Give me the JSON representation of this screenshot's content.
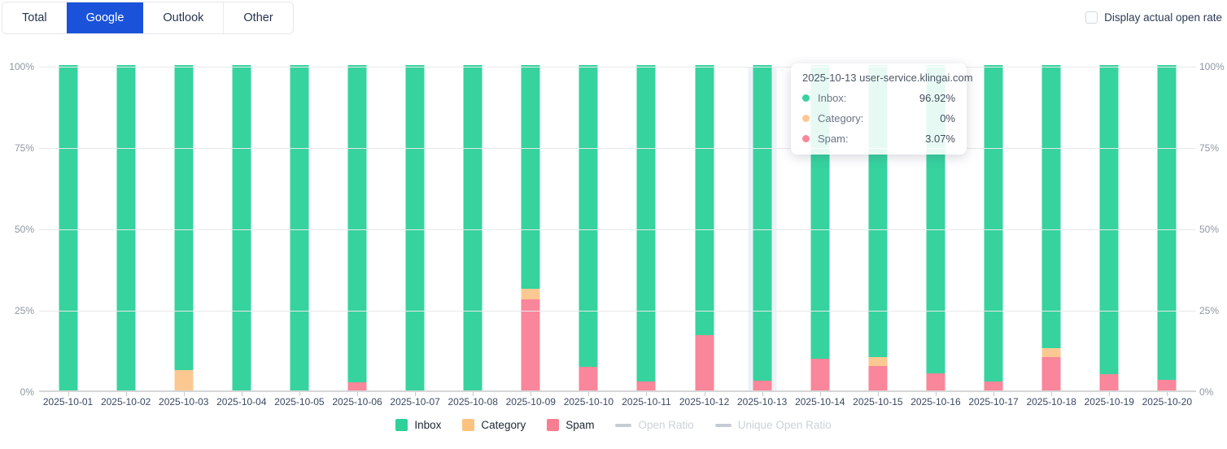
{
  "tabs": [
    {
      "label": "Total",
      "active": false
    },
    {
      "label": "Google",
      "active": true
    },
    {
      "label": "Outlook",
      "active": false
    },
    {
      "label": "Other",
      "active": false
    }
  ],
  "controls": {
    "display_actual_open_rate_label": "Display actual open rate",
    "checked": false
  },
  "chart_data": {
    "type": "bar",
    "stacked": true,
    "unit": "%",
    "title": "",
    "xlabel": "",
    "ylabel": "",
    "ylim": [
      0,
      100
    ],
    "yticks": [
      "0%",
      "25%",
      "50%",
      "75%",
      "100%"
    ],
    "grid": true,
    "categories": [
      "2025-10-01",
      "2025-10-02",
      "2025-10-03",
      "2025-10-04",
      "2025-10-05",
      "2025-10-06",
      "2025-10-07",
      "2025-10-08",
      "2025-10-09",
      "2025-10-10",
      "2025-10-11",
      "2025-10-12",
      "2025-10-13",
      "2025-10-14",
      "2025-10-15",
      "2025-10-16",
      "2025-10-17",
      "2025-10-18",
      "2025-10-19",
      "2025-10-20"
    ],
    "series": [
      {
        "name": "Inbox",
        "color": "#36d39f",
        "values": [
          100,
          100,
          93.8,
          100,
          100,
          97.4,
          100,
          100,
          68.7,
          92.8,
          97.2,
          82.9,
          96.92,
          90.3,
          89.7,
          94.7,
          97.3,
          86.9,
          95.0,
          96.7
        ]
      },
      {
        "name": "Category",
        "color": "#fcc892",
        "values": [
          0,
          0,
          6.2,
          0,
          0,
          0,
          0,
          0,
          3.3,
          0,
          0,
          0,
          0,
          0,
          2.7,
          0,
          0,
          2.8,
          0,
          0
        ]
      },
      {
        "name": "Spam",
        "color": "#f9869a",
        "values": [
          0,
          0,
          0,
          0,
          0,
          2.6,
          0,
          0,
          28.0,
          7.2,
          2.8,
          17.1,
          3.07,
          9.7,
          7.6,
          5.3,
          2.7,
          10.3,
          5.0,
          3.3
        ]
      }
    ],
    "stack_order_bottom_to_top": [
      "Spam",
      "Category",
      "Inbox"
    ],
    "highlighted_category": "2025-10-13",
    "legend_position": "bottom",
    "legend": [
      {
        "label": "Inbox",
        "color": "#2fd198",
        "type": "square",
        "disabled": false
      },
      {
        "label": "Category",
        "color": "#fbc37f",
        "type": "square",
        "disabled": false
      },
      {
        "label": "Spam",
        "color": "#f87f92",
        "type": "square",
        "disabled": false
      },
      {
        "label": "Open Ratio",
        "color": "#c7ccd4",
        "type": "line",
        "disabled": true
      },
      {
        "label": "Unique Open Ratio",
        "color": "#c7ccd4",
        "type": "line",
        "disabled": true
      }
    ]
  },
  "tooltip": {
    "title": "2025-10-13 user-service.klingai.com",
    "rows": [
      {
        "label": "Inbox:",
        "value": "96.92%",
        "color": "#36d39f"
      },
      {
        "label": "Category:",
        "value": "0%",
        "color": "#fcc892"
      },
      {
        "label": "Spam:",
        "value": "3.07%",
        "color": "#f9869a"
      }
    ]
  }
}
